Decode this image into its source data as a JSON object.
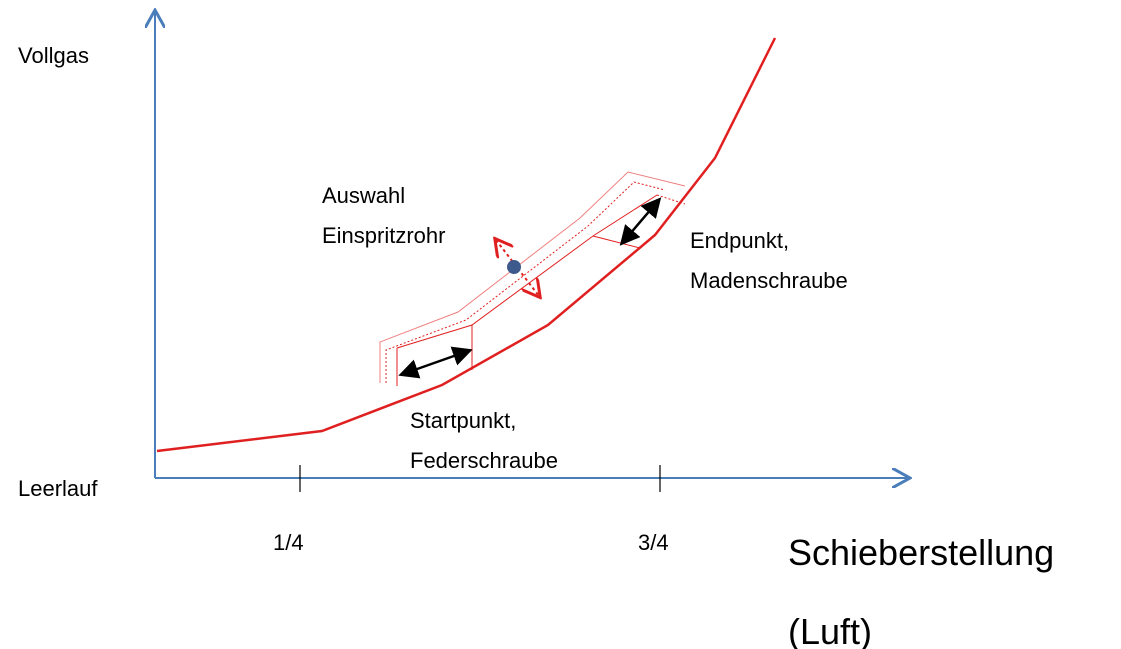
{
  "axes": {
    "y_top": "Vollgas",
    "y_bottom": "Leerlauf",
    "x_title": [
      "Schieberstellung",
      "(Luft)"
    ],
    "x_ticks": [
      "1/4",
      "3/4"
    ]
  },
  "annotations": [
    {
      "lines": [
        "Auswahl",
        "Einspritzrohr"
      ]
    },
    {
      "lines": [
        "Endpunkt,",
        "Madenschraube"
      ]
    },
    {
      "lines": [
        "Startpunkt,",
        "Federschraube"
      ]
    }
  ]
}
